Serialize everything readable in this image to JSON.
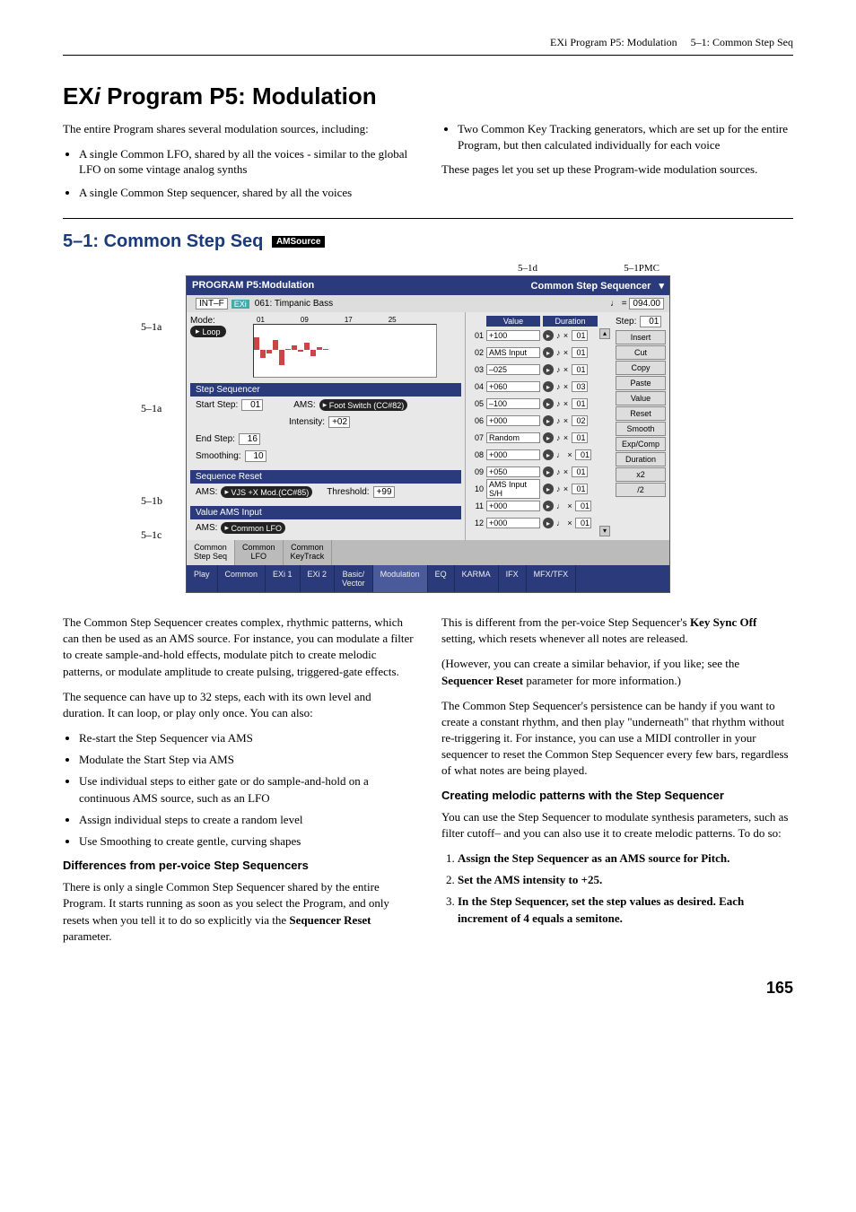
{
  "header": {
    "left": "EXi Program P5: Modulation",
    "right": "5–1: Common Step Seq"
  },
  "h1_prefix": "EX",
  "h1_italic": "i",
  "h1_rest": " Program P5: Modulation",
  "intro": {
    "left": {
      "p1": "The entire Program shares several modulation sources, including:",
      "li1": "A single Common LFO, shared by all the voices - similar to the global LFO on some vintage analog synths",
      "li2": "A single Common Step sequencer, shared by all the voices"
    },
    "right": {
      "li1": "Two Common Key Tracking generators, which are set up for the entire Program, but then calculated individually for each voice",
      "p1": "These pages let you set up these Program-wide modulation sources."
    }
  },
  "h2": "5–1: Common Step Seq",
  "h2_badge": "AMSource",
  "callouts": {
    "topleft": "5–1d",
    "topright": "5–1PMC",
    "a": "5–1a",
    "a2": "5–1a",
    "b": "5–1b",
    "c": "5–1c"
  },
  "panel": {
    "title_left": "PROGRAM P5:Modulation",
    "title_right": "Common Step Sequencer",
    "intf": "INT–F",
    "exi_tag": "EXi",
    "prog_name": "061: Timpanic Bass",
    "tempo_label": "♩ =",
    "tempo_val": "094.00",
    "mode_label": "Mode:",
    "mode_val": "Loop",
    "axis_labels": {
      "a01": "01",
      "a09": "09",
      "a17": "17",
      "a25": "25"
    },
    "sections": {
      "stepseq": "Step Sequencer",
      "seqreset": "Sequence Reset",
      "valueams": "Value AMS Input"
    },
    "start_step_lbl": "Start Step:",
    "start_step_val": "01",
    "ams1_lbl": "AMS:",
    "ams1_val": "Foot Switch (CC#82)",
    "intensity_lbl": "Intensity:",
    "intensity_val": "+02",
    "end_step_lbl": "End Step:",
    "end_step_val": "16",
    "smoothing_lbl": "Smoothing:",
    "smoothing_val": "10",
    "ams2_lbl": "AMS:",
    "ams2_val": "VJS +X Mod.(CC#85)",
    "threshold_lbl": "Threshold:",
    "threshold_val": "+99",
    "ams3_lbl": "AMS:",
    "ams3_val": "Common LFO",
    "value_hdr": "Value",
    "duration_hdr": "Duration",
    "step_lbl": "Step:",
    "step_val": "01",
    "buttons": [
      "Insert",
      "Cut",
      "Copy",
      "Paste",
      "Value",
      "Reset",
      "Smooth",
      "Exp/Comp",
      "Duration",
      "x2",
      "/2"
    ],
    "steps": [
      {
        "n": "01",
        "v": "+100",
        "note": "♪",
        "x": "×",
        "d": "01"
      },
      {
        "n": "02",
        "v": "AMS Input",
        "note": "♪",
        "x": "×",
        "d": "01"
      },
      {
        "n": "03",
        "v": "–025",
        "note": "♪",
        "x": "×",
        "d": "01"
      },
      {
        "n": "04",
        "v": "+060",
        "note": "♪",
        "x": "×",
        "d": "03"
      },
      {
        "n": "05",
        "v": "–100",
        "note": "♪",
        "x": "×",
        "d": "01"
      },
      {
        "n": "06",
        "v": "+000",
        "note": "♪",
        "x": "×",
        "d": "02"
      },
      {
        "n": "07",
        "v": "Random",
        "note": "♪",
        "x": "×",
        "d": "01"
      },
      {
        "n": "08",
        "v": "+000",
        "note": "♩",
        "x": "×",
        "d": "01"
      },
      {
        "n": "09",
        "v": "+050",
        "note": "♪",
        "x": "×",
        "d": "01"
      },
      {
        "n": "10",
        "v": "AMS Input S/H",
        "note": "♪",
        "x": "×",
        "d": "01"
      },
      {
        "n": "11",
        "v": "+000",
        "note": "♩",
        "x": "×",
        "d": "01"
      },
      {
        "n": "12",
        "v": "+000",
        "note": "♩",
        "x": "×",
        "d": "01"
      }
    ],
    "tabs1": [
      "Common\nStep Seq",
      "Common\nLFO",
      "Common\nKeyTrack"
    ],
    "tabs2": [
      "Play",
      "Common",
      "EXi 1",
      "EXi 2",
      "Basic/\nVector",
      "Modulation",
      "EQ",
      "KARMA",
      "IFX",
      "MFX/TFX"
    ],
    "graph_bars": [
      50,
      -30,
      -15,
      40,
      -60,
      5,
      20,
      -5,
      30,
      -25,
      10,
      5,
      0,
      0,
      0,
      0
    ]
  },
  "body": {
    "left": {
      "p1": "The Common Step Sequencer creates complex, rhythmic patterns, which can then be used as an AMS source. For instance, you can modulate a filter to create sample-and-hold effects, modulate pitch to create melodic patterns, or modulate amplitude to create pulsing, triggered-gate effects.",
      "p2": "The sequence can have up to 32 steps, each with its own level and duration. It can loop, or play only once. You can also:",
      "li1": "Re-start the Step Sequencer via AMS",
      "li2": "Modulate the Start Step via AMS",
      "li3": "Use individual steps to either gate or do sample-and-hold on a continuous AMS source, such as an LFO",
      "li4": "Assign individual steps to create a random level",
      "li5": "Use Smoothing to create gentle, curving shapes",
      "h3": "Differences from per-voice Step Sequencers",
      "p3a": "There is only a single Common Step Sequencer shared by the entire Program. It starts running as soon as you select the Program, and only resets when you tell it to do so explicitly via the ",
      "p3b": "Sequencer Reset",
      "p3c": " parameter."
    },
    "right": {
      "p1a": "This is different from the per-voice Step Sequencer's ",
      "p1b": "Key Sync Off",
      "p1c": " setting, which resets whenever all notes are released.",
      "p2a": "(However, you can create a similar behavior, if you like; see the ",
      "p2b": "Sequencer Reset",
      "p2c": " parameter for more information.)",
      "p3": "The Common Step Sequencer's persistence can be handy if you want to create a constant rhythm, and then play \"underneath\" that rhythm without re-triggering it. For instance, you can use a MIDI controller in your sequencer to reset the Common Step Sequencer every few bars, regardless of what notes are being played.",
      "h3": "Creating melodic patterns with the Step Sequencer",
      "p4": "You can use the Step Sequencer to modulate synthesis parameters, such as filter cutoff– and you can also use it to create melodic patterns. To do so:",
      "ol1": "Assign the Step Sequencer as an AMS source for Pitch.",
      "ol2": "Set the AMS intensity to +25.",
      "ol3": "In the Step Sequencer, set the step values as desired. Each increment of 4 equals a semitone."
    }
  },
  "page_num": "165"
}
